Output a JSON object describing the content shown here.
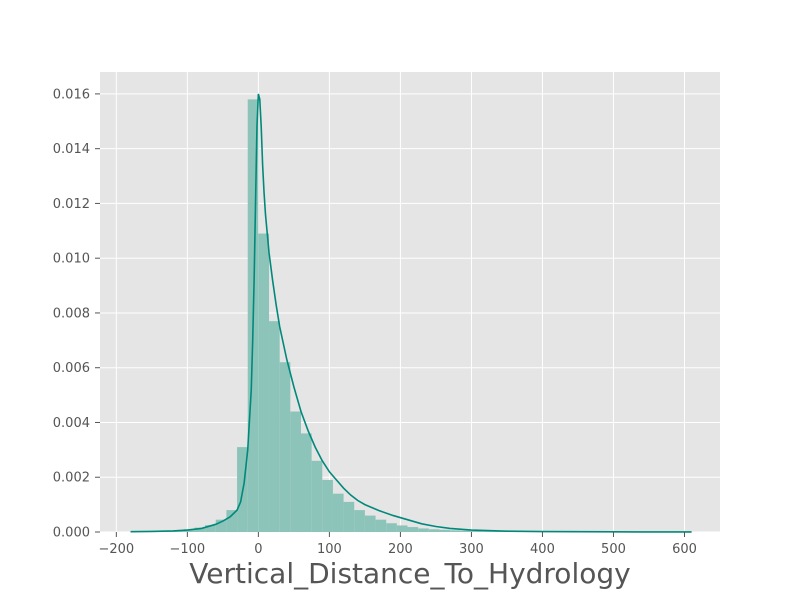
{
  "chart_data": {
    "type": "bar",
    "title": "",
    "xlabel": "Vertical_Distance_To_Hydrology",
    "ylabel": "",
    "xlim": [
      -223,
      650
    ],
    "ylim": [
      0,
      0.0168
    ],
    "grid": true,
    "x_ticks": [
      -200,
      -100,
      0,
      100,
      200,
      300,
      400,
      500,
      600
    ],
    "x_tick_labels": [
      "−200",
      "−100",
      "0",
      "100",
      "200",
      "300",
      "400",
      "500",
      "600"
    ],
    "y_ticks": [
      0.0,
      0.002,
      0.004,
      0.006,
      0.008,
      0.01,
      0.012,
      0.014,
      0.016
    ],
    "y_tick_labels": [
      "0.000",
      "0.002",
      "0.004",
      "0.006",
      "0.008",
      "0.010",
      "0.012",
      "0.014",
      "0.016"
    ],
    "histogram": {
      "name": "histogram",
      "color": "#8cc4ba",
      "bin_edges": [
        -180,
        -165,
        -150,
        -135,
        -120,
        -105,
        -90,
        -75,
        -60,
        -45,
        -30,
        -15,
        0,
        15,
        30,
        45,
        60,
        75,
        90,
        105,
        120,
        135,
        150,
        165,
        180,
        195,
        210,
        225,
        240,
        255,
        270,
        285,
        300,
        315,
        330,
        345,
        360,
        375,
        390,
        405,
        420,
        435,
        450,
        465,
        480,
        495,
        510,
        525,
        540,
        555,
        570,
        585,
        600,
        615
      ],
      "values": [
        1e-05,
        2e-05,
        3e-05,
        4e-05,
        6e-05,
        0.0001,
        0.00016,
        0.00025,
        0.00045,
        0.0008,
        0.0031,
        0.0158,
        0.0109,
        0.0077,
        0.0062,
        0.0044,
        0.0036,
        0.0026,
        0.0019,
        0.0014,
        0.0011,
        0.0008,
        0.0006,
        0.00045,
        0.00032,
        0.00024,
        0.00018,
        0.00013,
        0.0001,
        8e-05,
        6e-05,
        5e-05,
        4e-05,
        3e-05,
        2.5e-05,
        2e-05,
        1.5e-05,
        1e-05,
        1e-05,
        1e-05,
        8e-06,
        6e-06,
        5e-06,
        4e-06,
        4e-06,
        3e-06,
        3e-06,
        2e-06,
        2e-06,
        2e-06,
        1e-06,
        1e-06,
        1e-06
      ]
    },
    "kde": {
      "name": "kde",
      "color": "#00897b",
      "x": [
        -180,
        -150,
        -120,
        -100,
        -80,
        -60,
        -50,
        -40,
        -30,
        -25,
        -20,
        -15,
        -10,
        -8,
        -6,
        -4,
        -2,
        0,
        2,
        4,
        6,
        8,
        10,
        15,
        20,
        25,
        30,
        40,
        50,
        60,
        70,
        80,
        90,
        100,
        110,
        120,
        130,
        140,
        150,
        170,
        190,
        210,
        230,
        250,
        270,
        300,
        350,
        400,
        450,
        500,
        550,
        610
      ],
      "y": [
        1e-05,
        2e-05,
        4e-05,
        7e-05,
        0.00013,
        0.00028,
        0.0004,
        0.00055,
        0.0008,
        0.0011,
        0.0018,
        0.003,
        0.0052,
        0.007,
        0.0092,
        0.012,
        0.0148,
        0.016,
        0.0158,
        0.0148,
        0.0134,
        0.0124,
        0.0116,
        0.0102,
        0.0092,
        0.0083,
        0.0075,
        0.0063,
        0.0053,
        0.0044,
        0.0037,
        0.0031,
        0.0026,
        0.0022,
        0.0019,
        0.0016,
        0.00135,
        0.00115,
        0.001,
        0.00078,
        0.0006,
        0.00045,
        0.0003,
        0.0002,
        0.00013,
        7e-05,
        3e-05,
        1.5e-05,
        1e-05,
        5e-06,
        3e-06,
        1e-06
      ]
    }
  }
}
